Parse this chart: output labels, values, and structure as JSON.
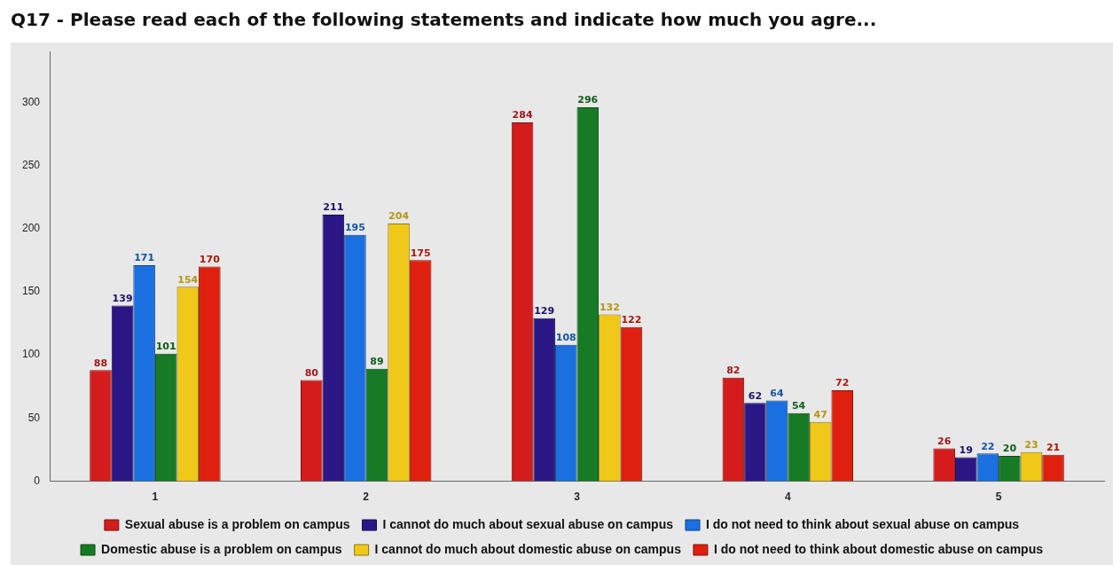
{
  "chart_data": {
    "type": "bar",
    "title": "Q17 - Please read each of the following statements and indicate how much you agre...",
    "categories": [
      "1",
      "2",
      "3",
      "4",
      "5"
    ],
    "series": [
      {
        "name": "Sexual abuse is a problem on campus",
        "color": "#d41c1c",
        "values": [
          88,
          80,
          284,
          82,
          26
        ]
      },
      {
        "name": "I cannot do much about sexual abuse on campus",
        "color": "#2a1785",
        "values": [
          139,
          211,
          129,
          62,
          19
        ]
      },
      {
        "name": "I do not need to think about sexual abuse on campus",
        "color": "#1a70e0",
        "values": [
          171,
          195,
          108,
          64,
          22
        ]
      },
      {
        "name": "Domestic abuse is a problem on campus",
        "color": "#177a24",
        "values": [
          101,
          89,
          296,
          54,
          20
        ]
      },
      {
        "name": "I cannot do much about domestic abuse on campus",
        "color": "#f0c818",
        "values": [
          154,
          204,
          132,
          47,
          23
        ]
      },
      {
        "name": "I do not need to think about domestic abuse on campus",
        "color": "#e0200e",
        "values": [
          170,
          175,
          122,
          72,
          21
        ]
      }
    ],
    "ylim": [
      0,
      340
    ],
    "yticks": [
      0,
      50,
      100,
      150,
      200,
      250,
      300
    ],
    "grid": false,
    "legend": "bottom",
    "data_labels": true
  }
}
